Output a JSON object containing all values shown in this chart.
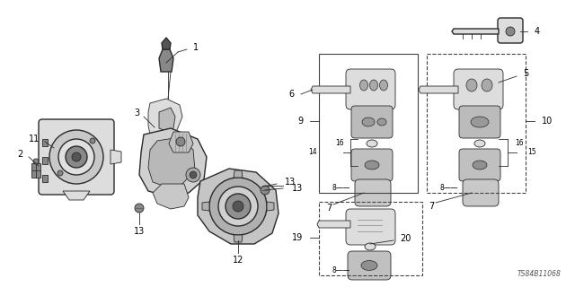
{
  "background_color": "#ffffff",
  "line_color": "#2a2a2a",
  "text_color": "#000000",
  "diagram_code": "TS84B11068",
  "fig_width": 6.4,
  "fig_height": 3.2,
  "dpi": 100,
  "gray_fill": "#aaaaaa",
  "dark_fill": "#555555",
  "mid_fill": "#888888",
  "light_fill": "#dddddd",
  "box_dash": "#666666",
  "fs_label": 7.0,
  "fs_small": 5.5,
  "lw_main": 1.0,
  "lw_thin": 0.6
}
